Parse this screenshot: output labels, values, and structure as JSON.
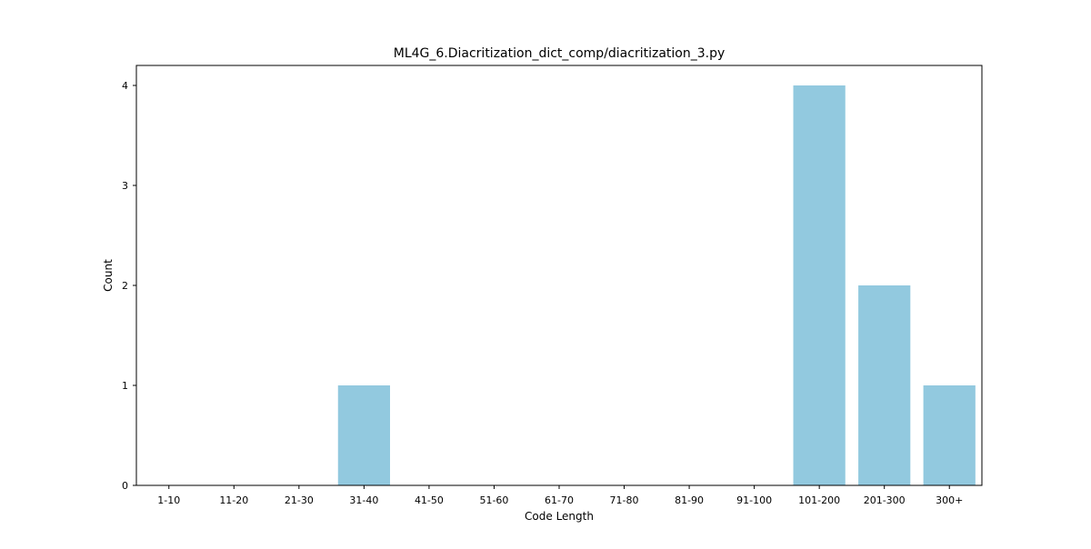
{
  "chart_data": {
    "type": "bar",
    "title": "ML4G_6.Diacritization_dict_comp/diacritization_3.py",
    "xlabel": "Code Length",
    "ylabel": "Count",
    "categories": [
      "1-10",
      "11-20",
      "21-30",
      "31-40",
      "41-50",
      "51-60",
      "61-70",
      "71-80",
      "81-90",
      "91-100",
      "101-200",
      "201-300",
      "300+"
    ],
    "values": [
      0,
      0,
      0,
      1,
      0,
      0,
      0,
      0,
      0,
      0,
      4,
      2,
      1
    ],
    "ylim": [
      0,
      4.2
    ],
    "yticks": [
      0,
      1,
      2,
      3,
      4
    ],
    "bar_color": "#92c9df",
    "grid": false,
    "legend": "none"
  }
}
